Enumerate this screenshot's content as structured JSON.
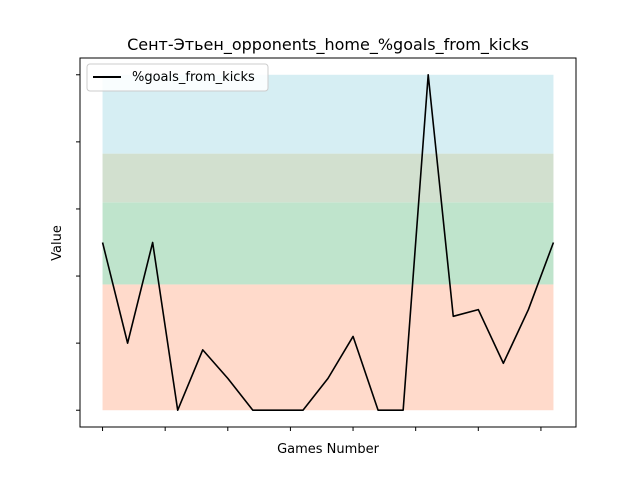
{
  "chart_data": {
    "type": "line",
    "title": "Сент-Этьен_opponents_home_%goals_from_kicks",
    "xlabel": "Games Number",
    "ylabel": "Value",
    "x": [
      0,
      1,
      2,
      3,
      4,
      5,
      6,
      7,
      8,
      9,
      10,
      11,
      12,
      13,
      14,
      15,
      16,
      17,
      18
    ],
    "series": [
      {
        "name": "%goals_from_kicks",
        "color": "#000000",
        "values": [
          0.5,
          0.2,
          0.5,
          0.0,
          0.18,
          0.095,
          0.0,
          0.0,
          0.0,
          0.095,
          0.22,
          0.0,
          0.0,
          1.0,
          0.28,
          0.3,
          0.14,
          0.3,
          0.5
        ]
      }
    ],
    "xlim": [
      -0.9,
      18.9
    ],
    "ylim": [
      -0.05,
      1.05
    ],
    "bands": [
      {
        "from": 0.0,
        "to": 0.375,
        "color": "#ffdacb"
      },
      {
        "from": 0.375,
        "to": 0.62,
        "color": "#bfe4cc"
      },
      {
        "from": 0.62,
        "to": 0.765,
        "color": "#d2e0cf"
      },
      {
        "from": 0.765,
        "to": 1.0,
        "color": "#d6eef3"
      }
    ],
    "legend_position": "top-left",
    "grid": false
  }
}
